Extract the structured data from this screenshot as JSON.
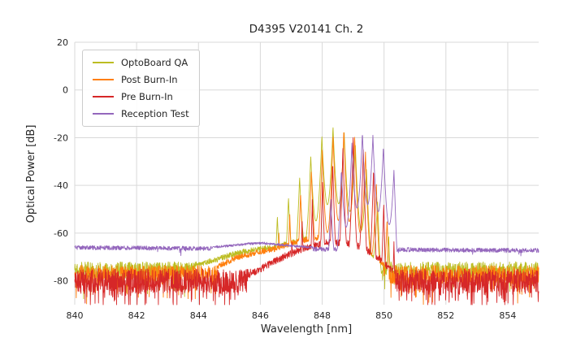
{
  "chart_data": {
    "type": "line",
    "title": "D4395 V20141 Ch. 2",
    "xlabel": "Wavelength [nm]",
    "ylabel": "Optical Power [dB]",
    "xlim": [
      840,
      855
    ],
    "ylim": [
      -90,
      20
    ],
    "xticks": [
      840,
      842,
      844,
      846,
      848,
      850,
      852,
      854
    ],
    "yticks": [
      20,
      0,
      -20,
      -40,
      -60,
      -80
    ],
    "grid": true,
    "legend": {
      "position": "upper left",
      "entries": [
        "OptoBoard QA",
        "Post Burn-In",
        "Pre Burn-In",
        "Reception Test"
      ]
    },
    "series": [
      {
        "name": "OptoBoard QA",
        "color": "#bcbd22",
        "seed": 11,
        "floor_base": -75.5,
        "floor_slope": 0,
        "noise_amp": 3.5,
        "spike_prob": 0.1,
        "spike_depth": 9,
        "shoulder_ripple": 1.2,
        "shoulder_points": [
          [
            843.8,
            -74
          ],
          [
            844.6,
            -71
          ],
          [
            845.2,
            -68.5
          ],
          [
            845.8,
            -67
          ],
          [
            846.4,
            -66
          ],
          [
            847.0,
            -64
          ],
          [
            847.6,
            -62
          ],
          [
            848.2,
            -62
          ],
          [
            848.8,
            -64
          ],
          [
            849.4,
            -68
          ],
          [
            849.9,
            -73
          ]
        ],
        "envelope_points": [
          [
            846.3,
            -58
          ],
          [
            846.9,
            -45
          ],
          [
            847.4,
            -33
          ],
          [
            847.8,
            -23
          ],
          [
            848.1,
            -16.5
          ],
          [
            848.35,
            -15
          ],
          [
            848.6,
            -16
          ],
          [
            848.9,
            -19
          ],
          [
            849.2,
            -25
          ],
          [
            849.6,
            -38
          ],
          [
            850.0,
            -55
          ],
          [
            850.4,
            -70
          ]
        ],
        "mode_spacing": 0.36,
        "mode_offset": 848.35,
        "mode_depth": 32,
        "mode_sharp": 0.45
      },
      {
        "name": "Post Burn-In",
        "color": "#ff7f0e",
        "seed": 22,
        "floor_base": -77.5,
        "floor_slope": 0,
        "noise_amp": 4.0,
        "spike_prob": 0.14,
        "spike_depth": 9,
        "shoulder_ripple": 1.2,
        "shoulder_points": [
          [
            844.6,
            -74
          ],
          [
            845.3,
            -70
          ],
          [
            845.9,
            -68
          ],
          [
            846.5,
            -66.5
          ],
          [
            847.1,
            -64
          ],
          [
            847.7,
            -62
          ],
          [
            848.3,
            -62
          ],
          [
            848.9,
            -64
          ],
          [
            849.5,
            -68
          ],
          [
            850.0,
            -73
          ]
        ],
        "envelope_points": [
          [
            846.6,
            -60
          ],
          [
            847.2,
            -45
          ],
          [
            847.7,
            -32
          ],
          [
            848.1,
            -23
          ],
          [
            848.45,
            -17
          ],
          [
            848.7,
            -16
          ],
          [
            849.0,
            -18
          ],
          [
            849.3,
            -23
          ],
          [
            849.6,
            -32
          ],
          [
            849.9,
            -45
          ],
          [
            850.3,
            -62
          ]
        ],
        "mode_spacing": 0.35,
        "mode_offset": 848.7,
        "mode_depth": 38,
        "mode_sharp": 0.45
      },
      {
        "name": "Pre Burn-In",
        "color": "#d62728",
        "seed": 33,
        "floor_base": -80,
        "floor_slope": 0,
        "noise_amp": 5.0,
        "spike_prob": 0.22,
        "spike_depth": 9,
        "shoulder_ripple": 1.5,
        "shoulder_points": [
          [
            845.6,
            -78
          ],
          [
            846.3,
            -73
          ],
          [
            846.9,
            -69
          ],
          [
            847.5,
            -66
          ],
          [
            848.1,
            -64
          ],
          [
            848.7,
            -64
          ],
          [
            849.3,
            -66
          ],
          [
            849.8,
            -70
          ],
          [
            850.3,
            -76
          ]
        ],
        "envelope_points": [
          [
            847.0,
            -62
          ],
          [
            847.6,
            -48
          ],
          [
            848.1,
            -35
          ],
          [
            848.5,
            -26
          ],
          [
            848.8,
            -21
          ],
          [
            849.0,
            -20
          ],
          [
            849.3,
            -23
          ],
          [
            849.6,
            -30
          ],
          [
            849.9,
            -42
          ],
          [
            850.2,
            -58
          ],
          [
            850.5,
            -72
          ]
        ],
        "mode_spacing": 0.33,
        "mode_offset": 849.0,
        "mode_depth": 48,
        "mode_sharp": 0.45
      },
      {
        "name": "Reception Test",
        "color": "#9467bd",
        "seed": 44,
        "floor_base": -66.1,
        "floor_slope": -0.08,
        "noise_amp": 0.9,
        "spike_prob": 0.02,
        "spike_depth": 2.5,
        "shoulder_ripple": 0.5,
        "shoulder_points": [
          [
            844.4,
            -66
          ],
          [
            845.0,
            -65.3
          ],
          [
            845.6,
            -64.5
          ],
          [
            846.1,
            -64.2
          ],
          [
            846.6,
            -64.8
          ],
          [
            847.1,
            -65.5
          ],
          [
            847.7,
            -66
          ]
        ],
        "envelope_points": [
          [
            848.0,
            -55
          ],
          [
            848.4,
            -42
          ],
          [
            848.7,
            -30
          ],
          [
            849.0,
            -21
          ],
          [
            849.3,
            -17.5
          ],
          [
            849.6,
            -18.5
          ],
          [
            849.9,
            -22
          ],
          [
            850.15,
            -26
          ],
          [
            850.35,
            -35
          ],
          [
            850.5,
            -55
          ]
        ],
        "mode_spacing": 0.34,
        "mode_offset": 849.3,
        "mode_depth": 30,
        "mode_sharp": 0.45
      }
    ]
  }
}
